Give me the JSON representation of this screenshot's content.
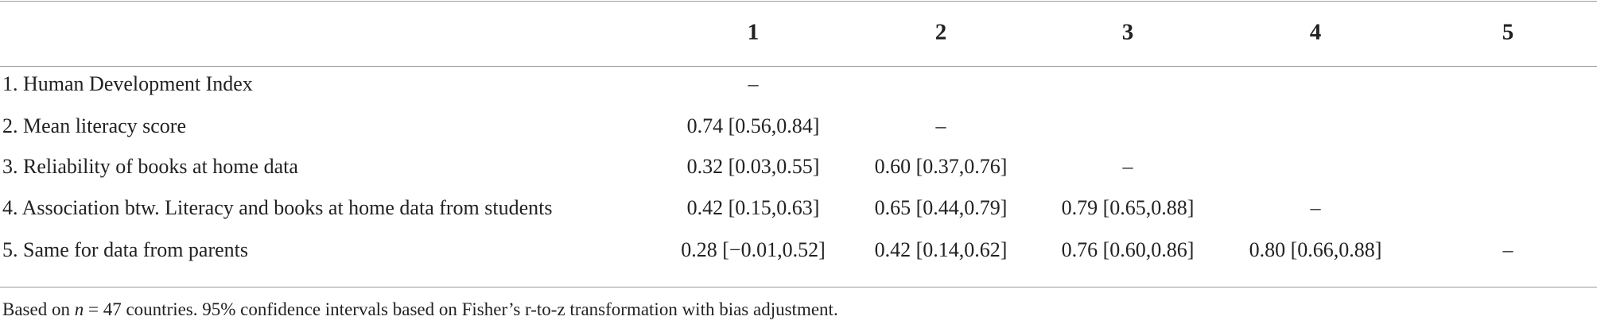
{
  "table": {
    "header": [
      "1",
      "2",
      "3",
      "4",
      "5"
    ],
    "rows": [
      {
        "label": "1. Human Development Index",
        "cells": [
          "–"
        ]
      },
      {
        "label": "2. Mean literacy score",
        "cells": [
          "0.74 [0.56,0.84]",
          "–"
        ]
      },
      {
        "label": "3. Reliability of books at home data",
        "cells": [
          "0.32 [0.03,0.55]",
          "0.60 [0.37,0.76]",
          "–"
        ]
      },
      {
        "label": "4. Association btw. Literacy and books at home data from students",
        "cells": [
          "0.42 [0.15,0.63]",
          "0.65 [0.44,0.79]",
          "0.79 [0.65,0.88]",
          "–"
        ]
      },
      {
        "label": "5. Same for data from parents",
        "cells": [
          "0.28 [−0.01,0.52]",
          "0.42 [0.14,0.62]",
          "0.76 [0.60,0.86]",
          "0.80 [0.66,0.88]",
          "–"
        ]
      }
    ],
    "footnote": {
      "before": "Based on ",
      "italic": "n",
      "after": " = 47 countries. 95% confidence intervals based on Fisher’s r-to-z transformation with bias adjustment."
    }
  }
}
